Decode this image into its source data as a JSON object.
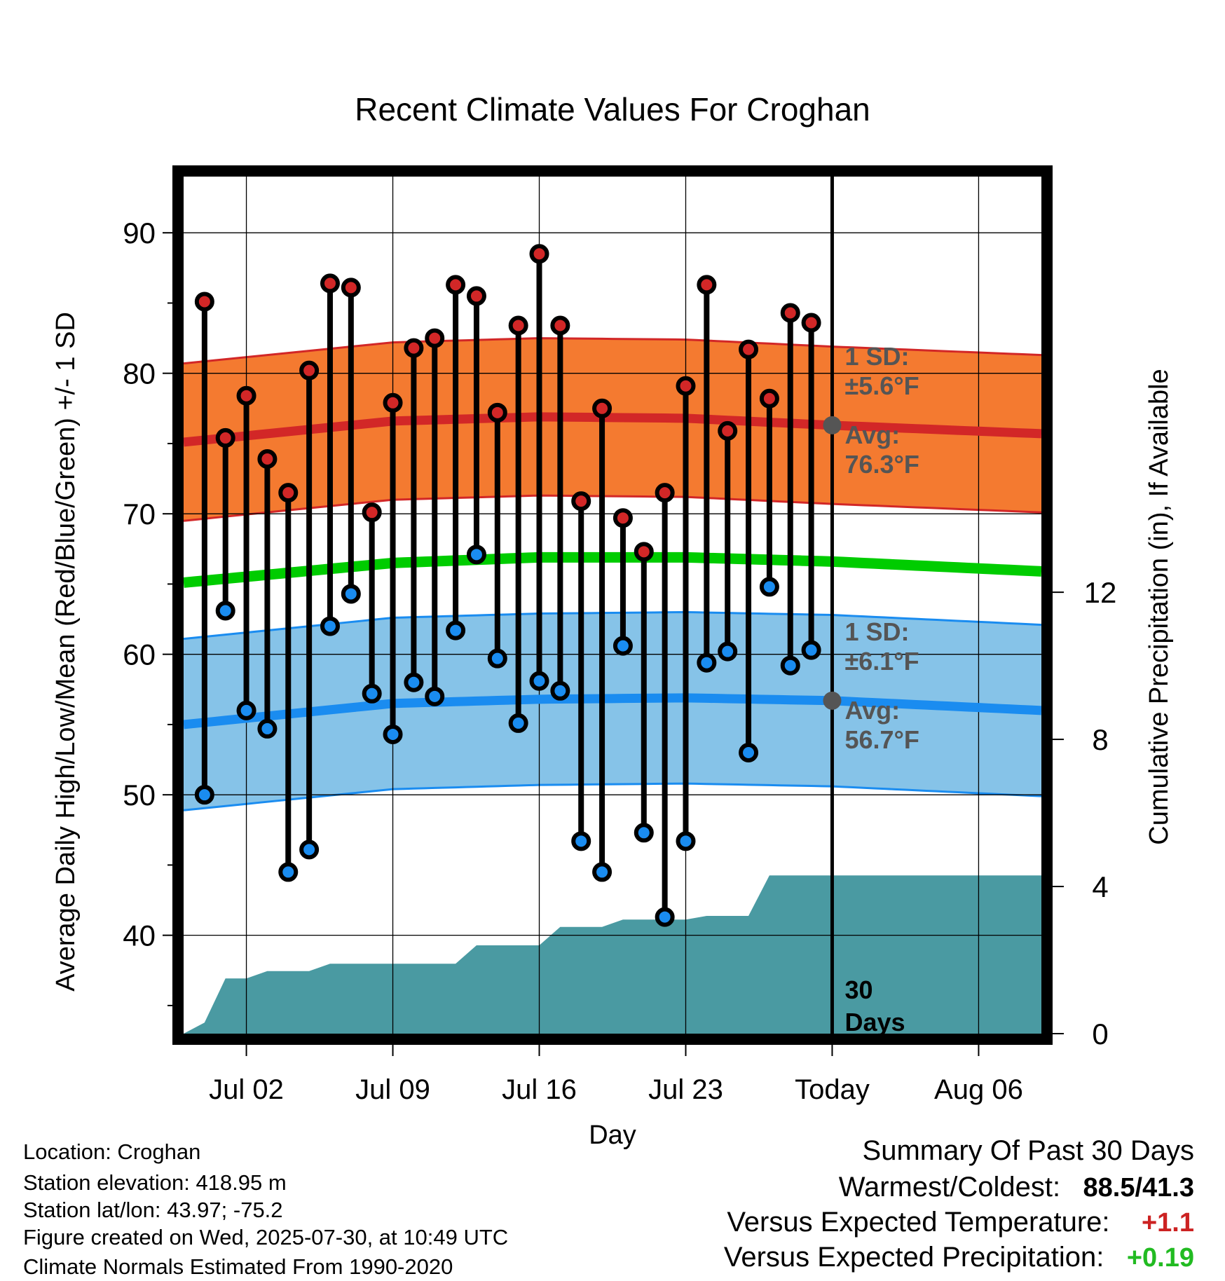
{
  "chart_data": {
    "type": "line",
    "title": "Recent Climate Values For Croghan",
    "xlabel": "Day",
    "ylabel": "Average Daily High/Low/Mean (Red/Blue/Green) +/- 1 SD",
    "y2label": "Cumulative Precipitation (in), If Available",
    "x_range": [
      "2025-06-29",
      "2025-08-09"
    ],
    "ylim": [
      33,
      94
    ],
    "y2lim": [
      0,
      23.3
    ],
    "y_ticks": [
      40,
      50,
      60,
      70,
      80,
      90
    ],
    "y2_ticks": [
      0,
      4,
      8,
      12
    ],
    "x_ticks": [
      {
        "date": "2025-07-02",
        "label": "Jul 02"
      },
      {
        "date": "2025-07-09",
        "label": "Jul 09"
      },
      {
        "date": "2025-07-16",
        "label": "Jul 16"
      },
      {
        "date": "2025-07-23",
        "label": "Jul 23"
      },
      {
        "date": "2025-07-30",
        "label": "Today"
      },
      {
        "date": "2025-08-06",
        "label": "Aug 06"
      }
    ],
    "today": "2025-07-30",
    "days": [
      "2025-06-30",
      "2025-07-01",
      "2025-07-02",
      "2025-07-03",
      "2025-07-04",
      "2025-07-05",
      "2025-07-06",
      "2025-07-07",
      "2025-07-08",
      "2025-07-09",
      "2025-07-10",
      "2025-07-11",
      "2025-07-12",
      "2025-07-13",
      "2025-07-14",
      "2025-07-15",
      "2025-07-16",
      "2025-07-17",
      "2025-07-18",
      "2025-07-19",
      "2025-07-20",
      "2025-07-21",
      "2025-07-22",
      "2025-07-23",
      "2025-07-24",
      "2025-07-25",
      "2025-07-26",
      "2025-07-27",
      "2025-07-28",
      "2025-07-29"
    ],
    "daily_high": [
      85.1,
      75.4,
      78.4,
      73.9,
      71.5,
      80.2,
      86.4,
      86.1,
      70.1,
      77.9,
      81.8,
      82.5,
      86.3,
      85.5,
      77.2,
      83.4,
      88.5,
      83.4,
      70.9,
      77.5,
      69.7,
      67.3,
      71.5,
      79.1,
      86.3,
      75.9,
      81.7,
      78.2,
      84.3,
      83.6
    ],
    "daily_low": [
      50.0,
      63.1,
      56.0,
      54.7,
      44.5,
      46.1,
      62.0,
      64.3,
      57.2,
      54.3,
      58.0,
      57.0,
      61.7,
      67.1,
      59.7,
      55.1,
      58.1,
      57.4,
      46.7,
      44.5,
      60.6,
      47.3,
      41.3,
      46.7,
      59.4,
      60.2,
      53.0,
      64.8,
      59.2,
      60.3
    ],
    "normal_high": {
      "dates": [
        "2025-06-29",
        "2025-07-09",
        "2025-07-16",
        "2025-07-23",
        "2025-07-30",
        "2025-08-09"
      ],
      "values": [
        75.1,
        76.6,
        76.9,
        76.8,
        76.3,
        75.7
      ]
    },
    "normal_high_sd": 5.6,
    "normal_low": {
      "dates": [
        "2025-06-29",
        "2025-07-09",
        "2025-07-16",
        "2025-07-23",
        "2025-07-30",
        "2025-08-09"
      ],
      "values": [
        55.0,
        56.5,
        56.8,
        56.9,
        56.7,
        56.0
      ]
    },
    "normal_low_sd": 6.1,
    "normal_mean": {
      "dates": [
        "2025-06-29",
        "2025-07-09",
        "2025-07-16",
        "2025-07-23",
        "2025-07-30",
        "2025-08-09"
      ],
      "values": [
        65.1,
        66.5,
        66.9,
        66.9,
        66.6,
        65.9
      ]
    },
    "cumulative_precip": {
      "dates": [
        "2025-06-29",
        "2025-06-30",
        "2025-07-01",
        "2025-07-02",
        "2025-07-03",
        "2025-07-05",
        "2025-07-06",
        "2025-07-07",
        "2025-07-12",
        "2025-07-13",
        "2025-07-16",
        "2025-07-17",
        "2025-07-19",
        "2025-07-20",
        "2025-07-23",
        "2025-07-24",
        "2025-07-26",
        "2025-07-27",
        "2025-08-09"
      ],
      "values": [
        0.0,
        0.3,
        1.5,
        1.5,
        1.7,
        1.7,
        1.9,
        1.9,
        1.9,
        2.4,
        2.4,
        2.9,
        2.9,
        3.1,
        3.1,
        3.2,
        3.2,
        4.3,
        4.3
      ]
    },
    "annotations": {
      "high_sd_label": "1 SD:",
      "high_sd_value": "±5.6°F",
      "high_avg_label": "Avg:",
      "high_avg_value": "76.3°F",
      "low_sd_label": "1 SD:",
      "low_sd_value": "±6.1°F",
      "low_avg_label": "Avg:",
      "low_avg_value": "56.7°F",
      "days_num": "30",
      "days_word": "Days"
    },
    "colors": {
      "high_band": "#f47a30",
      "high_line": "#d22727",
      "low_band": "#86c3e8",
      "low_line": "#1a8cf0",
      "mean_line": "#00cc00",
      "precip": "#4a9aa2",
      "high_dot": "#d22727",
      "low_dot": "#1a8cf0",
      "avg_dot": "#555555"
    },
    "grid": true
  },
  "footer": {
    "location": "Location: Croghan",
    "elevation": "Station elevation: 418.95 m",
    "latlon": "Station lat/lon: 43.97; -75.2",
    "created": "Figure created on Wed, 2025-07-30, at 10:49 UTC",
    "normals": "Climate Normals Estimated From 1990-2020"
  },
  "summary": {
    "title": "Summary Of Past 30 Days",
    "warm_cold_label": "Warmest/Coldest:",
    "warm_cold_value": "88.5/41.3",
    "temp_label": "Versus Expected Temperature:",
    "temp_value": "+1.1",
    "temp_color": "#cc2222",
    "precip_label": "Versus Expected Precipitation:",
    "precip_value": "+0.19",
    "precip_color": "#22bb22"
  }
}
